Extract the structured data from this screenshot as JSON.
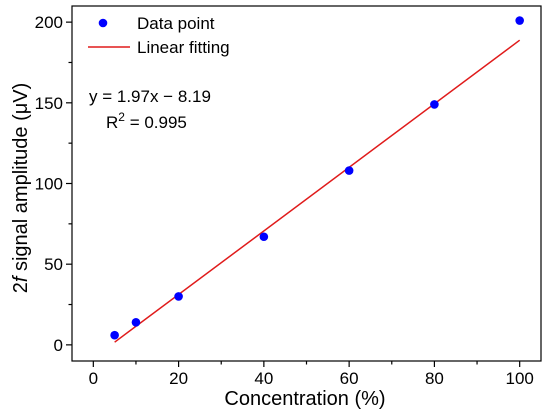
{
  "chart_data": {
    "type": "scatter",
    "xlabel": "Concentration (%)",
    "ylabel_parts": {
      "prefix": "2",
      "italic": "f",
      "suffix": " signal amplitude (μV)"
    },
    "xlim": [
      -5,
      105
    ],
    "ylim": [
      -10,
      210
    ],
    "x_ticks": [
      0,
      20,
      40,
      60,
      80,
      100
    ],
    "y_ticks": [
      0,
      50,
      100,
      150,
      200
    ],
    "x_ticks_minor": [
      10,
      30,
      50,
      70,
      90
    ],
    "y_ticks_minor": [
      25,
      75,
      125,
      175
    ],
    "series": [
      {
        "name": "Data point",
        "kind": "scatter",
        "color": "#0000ff",
        "x": [
          5,
          10,
          20,
          40,
          60,
          80,
          100
        ],
        "y": [
          6,
          14,
          30,
          67,
          108,
          149,
          201
        ]
      },
      {
        "name": "Linear fitting",
        "kind": "line",
        "color": "#e01b1b",
        "slope": 1.97,
        "intercept": -8.19,
        "x_range": [
          5,
          100
        ]
      }
    ],
    "annotations": {
      "equation": "y = 1.97x − 8.19",
      "r2_prefix": "R",
      "r2_sup": "2",
      "r2_value": " = 0.995"
    },
    "legend_position": "top-left"
  }
}
